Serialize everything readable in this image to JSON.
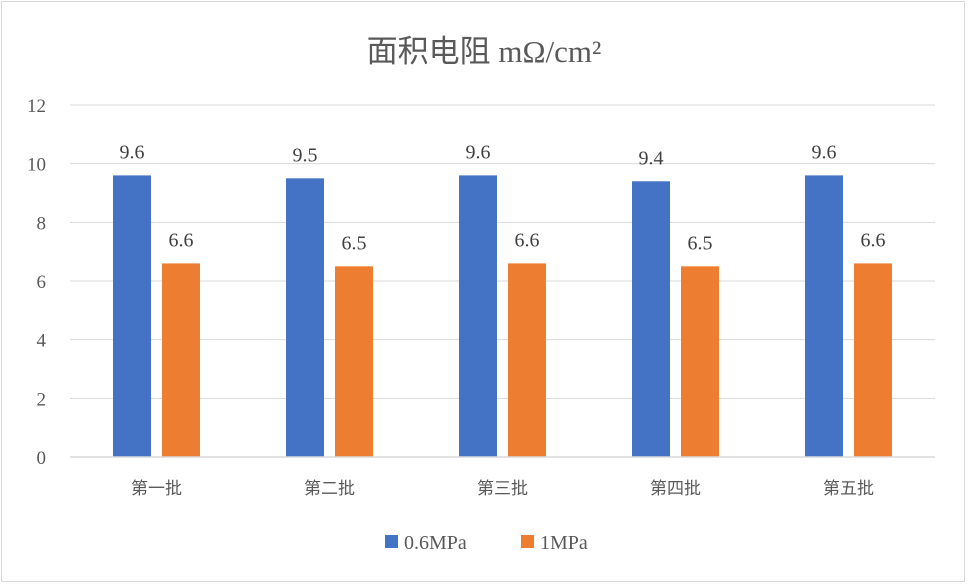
{
  "chart_data": {
    "type": "bar",
    "title": "面积电阻 mΩ/cm²",
    "categories": [
      "第一批",
      "第二批",
      "第三批",
      "第四批",
      "第五批"
    ],
    "series": [
      {
        "name": "0.6MPa",
        "color": "#4472c4",
        "values": [
          9.6,
          9.5,
          9.6,
          9.4,
          9.6
        ]
      },
      {
        "name": "1MPa",
        "color": "#ed7d31",
        "values": [
          6.6,
          6.5,
          6.6,
          6.5,
          6.6
        ]
      }
    ],
    "data_labels": [
      [
        "9.6",
        "9.5",
        "9.6",
        "9.4",
        "9.6"
      ],
      [
        "6.6",
        "6.5",
        "6.6",
        "6.5",
        "6.6"
      ]
    ],
    "ylim": [
      0,
      12
    ],
    "yticks": [
      "0",
      "2",
      "4",
      "6",
      "8",
      "10",
      "12"
    ],
    "grid": true,
    "legend_position": "bottom"
  }
}
